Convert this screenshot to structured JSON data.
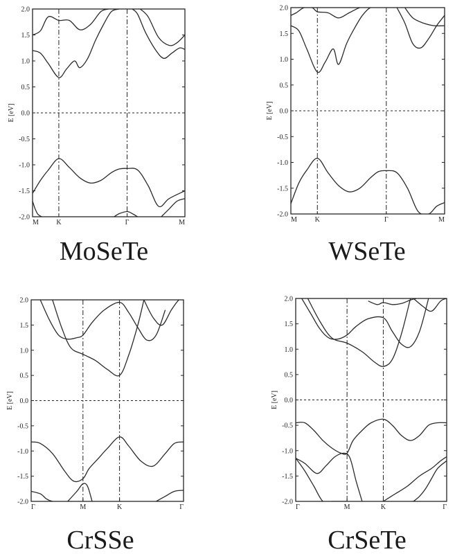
{
  "chart_data": [
    {
      "type": "line",
      "title": "MoSeTe",
      "ylabel": "E [eV]",
      "ylim": [
        -2.0,
        2.0
      ],
      "yticks": [
        "2.0",
        "1.5",
        "1.0",
        "0.5",
        "0.0",
        "-0.5",
        "-1.0",
        "-1.5",
        "-2.0"
      ],
      "kpoints": [
        {
          "label": "M",
          "x": 0
        },
        {
          "label": "K",
          "x": 1
        },
        {
          "label": "Γ",
          "x": 3.6
        },
        {
          "label": "M",
          "x": 5.8
        }
      ],
      "fermi_level": 0.0,
      "series": [
        {
          "x": [
            0,
            0.3,
            0.6,
            1.0,
            1.4,
            1.8,
            2.2,
            2.6,
            3.0,
            3.3,
            3.6,
            4.0,
            4.4,
            4.8,
            5.2,
            5.8
          ],
          "y": [
            -1.55,
            -1.3,
            -1.1,
            -0.88,
            -1.05,
            -1.25,
            -1.35,
            -1.3,
            -1.15,
            -1.08,
            -1.07,
            -1.1,
            -1.4,
            -1.8,
            -1.65,
            -1.5
          ]
        },
        {
          "x": [
            0,
            0.1,
            0.2,
            0.35
          ],
          "y": [
            -1.7,
            -1.85,
            -1.95,
            -2.0
          ]
        },
        {
          "x": [
            3.1,
            3.3,
            3.6,
            3.8,
            4.0
          ],
          "y": [
            -2.0,
            -1.94,
            -1.9,
            -1.94,
            -2.0
          ]
        },
        {
          "x": [
            4.9,
            5.2,
            5.5,
            5.8
          ],
          "y": [
            -2.0,
            -1.85,
            -1.7,
            -1.65
          ]
        },
        {
          "x": [
            0,
            0.3,
            0.6,
            1.0,
            1.3,
            1.6,
            1.8,
            2.1,
            2.4,
            2.7,
            3.0,
            3.3
          ],
          "y": [
            1.2,
            1.15,
            0.95,
            0.68,
            0.85,
            1.0,
            0.87,
            1.05,
            1.4,
            1.7,
            1.95,
            2.0
          ]
        },
        {
          "x": [
            0,
            0.3,
            0.6,
            1.0,
            1.4,
            1.8,
            2.2,
            2.6,
            2.9
          ],
          "y": [
            1.5,
            1.58,
            1.85,
            1.78,
            1.78,
            1.6,
            1.7,
            1.95,
            2.0
          ]
        },
        {
          "x": [
            3.8,
            4.0,
            4.3,
            4.7,
            5.0,
            5.3,
            5.6,
            5.8
          ],
          "y": [
            2.0,
            1.9,
            1.55,
            1.2,
            1.05,
            1.15,
            1.25,
            1.22
          ]
        },
        {
          "x": [
            4.1,
            4.4,
            4.8,
            5.2,
            5.5,
            5.8
          ],
          "y": [
            2.0,
            1.85,
            1.45,
            1.3,
            1.35,
            1.5
          ]
        }
      ]
    },
    {
      "type": "line",
      "title": "WSeTe",
      "ylabel": "E [eV]",
      "ylim": [
        -2.0,
        2.0
      ],
      "yticks": [
        "2.0",
        "1.5",
        "1.0",
        "0.5",
        "0.0",
        "-0.5",
        "-1.0",
        "-1.5",
        "-2.0"
      ],
      "kpoints": [
        {
          "label": "M",
          "x": 0
        },
        {
          "label": "K",
          "x": 1
        },
        {
          "label": "Γ",
          "x": 3.6
        },
        {
          "label": "M",
          "x": 5.8
        }
      ],
      "fermi_level": 0.0,
      "series": [
        {
          "x": [
            0,
            0.3,
            0.6,
            1.0,
            1.4,
            1.8,
            2.2,
            2.6,
            3.0,
            3.3,
            3.6,
            4.0,
            4.4,
            4.8,
            5.2,
            5.5,
            5.8
          ],
          "y": [
            -1.8,
            -1.4,
            -1.15,
            -0.92,
            -1.2,
            -1.45,
            -1.57,
            -1.5,
            -1.3,
            -1.18,
            -1.16,
            -1.2,
            -1.5,
            -1.95,
            -2.0,
            -1.85,
            -1.78
          ]
        },
        {
          "x": [
            0,
            0.3,
            0.6,
            1.0,
            1.3,
            1.6,
            1.8,
            2.1,
            2.4,
            2.7,
            3.0,
            3.3
          ],
          "y": [
            1.65,
            1.55,
            1.2,
            0.75,
            0.95,
            1.2,
            0.9,
            1.3,
            1.6,
            1.85,
            2.0,
            2.0
          ]
        },
        {
          "x": [
            0,
            0.2,
            0.5,
            0.8,
            1.0,
            1.4,
            1.8,
            2.2,
            2.6,
            2.8
          ],
          "y": [
            1.85,
            1.9,
            2.0,
            2.0,
            1.92,
            1.9,
            1.8,
            1.9,
            2.0,
            2.0
          ]
        },
        {
          "x": [
            4.0,
            4.3,
            4.6,
            4.9,
            5.2,
            5.5,
            5.8
          ],
          "y": [
            2.0,
            1.7,
            1.3,
            1.22,
            1.4,
            1.65,
            1.85
          ]
        },
        {
          "x": [
            4.3,
            4.6,
            5.0,
            5.4,
            5.8
          ],
          "y": [
            2.0,
            1.8,
            1.7,
            1.65,
            1.65
          ]
        }
      ]
    },
    {
      "type": "line",
      "title": "CrSSe",
      "ylabel": "E [eV]",
      "ylim": [
        -2.0,
        2.0
      ],
      "yticks": [
        "2.0",
        "1.5",
        "1.0",
        "0.5",
        "0.0",
        "-0.5",
        "-1.0",
        "-1.5",
        "-2.0"
      ],
      "kpoints": [
        {
          "label": "Γ",
          "x": 0
        },
        {
          "label": "M",
          "x": 1.7
        },
        {
          "label": "K",
          "x": 2.9
        },
        {
          "label": "Γ",
          "x": 5.0
        }
      ],
      "fermi_level": 0.0,
      "series": [
        {
          "x": [
            0,
            0.3,
            0.7,
            1.1,
            1.4,
            1.7,
            1.9,
            2.2,
            2.5,
            2.9,
            3.2,
            3.6,
            4.0,
            4.4,
            4.7,
            5.0
          ],
          "y": [
            -0.82,
            -0.85,
            -1.05,
            -1.4,
            -1.6,
            -1.55,
            -1.35,
            -1.15,
            -0.95,
            -0.72,
            -0.9,
            -1.2,
            -1.3,
            -1.05,
            -0.85,
            -0.82
          ]
        },
        {
          "x": [
            1.2,
            1.5,
            1.7,
            1.85,
            2.0
          ],
          "y": [
            -2.0,
            -1.8,
            -1.65,
            -1.7,
            -2.0
          ]
        },
        {
          "x": [
            0,
            0.3,
            0.5,
            0.7,
            0.85
          ],
          "y": [
            -1.8,
            -1.85,
            -1.95,
            -2.0,
            -2.0
          ]
        },
        {
          "x": [
            4.1,
            4.4,
            4.7,
            5.0
          ],
          "y": [
            -2.0,
            -1.9,
            -1.8,
            -1.78
          ]
        },
        {
          "x": [
            0.7,
            1.0,
            1.3,
            1.7,
            2.1,
            2.5,
            2.9,
            3.2,
            3.5,
            3.7
          ],
          "y": [
            2.0,
            1.45,
            1.05,
            0.92,
            0.8,
            0.62,
            0.5,
            0.9,
            1.5,
            2.0
          ]
        },
        {
          "x": [
            0.3,
            0.6,
            0.9,
            1.2,
            1.5,
            1.7,
            2.0,
            2.4,
            2.9,
            3.2,
            3.5,
            3.8,
            4.1,
            4.4
          ],
          "y": [
            2.0,
            1.6,
            1.3,
            1.22,
            1.25,
            1.3,
            1.55,
            1.8,
            1.95,
            1.75,
            1.45,
            1.2,
            1.3,
            1.8
          ]
        },
        {
          "x": [
            3.7,
            4.0,
            4.3,
            4.6,
            4.85,
            5.0
          ],
          "y": [
            2.0,
            1.65,
            1.5,
            1.8,
            2.0,
            2.0
          ]
        }
      ]
    },
    {
      "type": "line",
      "title": "CrSeTe",
      "ylabel": "E [eV]",
      "ylim": [
        -2.0,
        2.0
      ],
      "yticks": [
        "2.0",
        "1.5",
        "1.0",
        "0.5",
        "0.0",
        "-0.5",
        "-1.0",
        "-1.5",
        "-2.0"
      ],
      "kpoints": [
        {
          "label": "Γ",
          "x": 0
        },
        {
          "label": "M",
          "x": 1.7
        },
        {
          "label": "K",
          "x": 2.9
        },
        {
          "label": "Γ",
          "x": 5.0
        }
      ],
      "fermi_level": 0.0,
      "series": [
        {
          "x": [
            0,
            0.3,
            0.6,
            0.9,
            1.2,
            1.5,
            1.7,
            1.9,
            2.2,
            2.5,
            2.9,
            3.2,
            3.5,
            3.8,
            4.1,
            4.4,
            4.7,
            5.0
          ],
          "y": [
            -0.45,
            -0.45,
            -0.6,
            -0.8,
            -0.95,
            -1.05,
            -1.05,
            -0.8,
            -0.6,
            -0.45,
            -0.38,
            -0.5,
            -0.7,
            -0.8,
            -0.7,
            -0.5,
            -0.45,
            -0.45
          ]
        },
        {
          "x": [
            0,
            0.3,
            0.7,
            1.0,
            1.3,
            1.6,
            1.8,
            2.0,
            2.2
          ],
          "y": [
            -1.15,
            -1.25,
            -1.45,
            -1.3,
            -1.12,
            -1.05,
            -1.15,
            -1.6,
            -2.0
          ]
        },
        {
          "x": [
            0,
            0.3,
            0.6,
            0.9,
            1.2,
            1.5,
            1.7
          ],
          "y": [
            -1.15,
            -1.4,
            -1.7,
            -2.0,
            -2.0,
            -2.0,
            -2.0
          ]
        },
        {
          "x": [
            2.9,
            3.3,
            3.7,
            4.1,
            4.5,
            4.8,
            5.0
          ],
          "y": [
            -2.0,
            -1.85,
            -1.7,
            -1.5,
            -1.35,
            -1.2,
            -1.12
          ]
        },
        {
          "x": [
            3.9,
            4.1,
            4.3,
            4.5,
            4.7,
            5.0
          ],
          "y": [
            -2.0,
            -1.9,
            -1.75,
            -1.55,
            -1.35,
            -1.2
          ]
        },
        {
          "x": [
            0.4,
            0.8,
            1.2,
            1.7,
            2.2,
            2.6,
            2.9,
            3.2,
            3.5,
            3.8
          ],
          "y": [
            2.0,
            1.55,
            1.22,
            1.12,
            0.95,
            0.75,
            0.66,
            0.8,
            1.3,
            2.0
          ]
        },
        {
          "x": [
            0.2,
            0.5,
            0.8,
            1.1,
            1.4,
            1.7,
            2.0,
            2.4,
            2.9,
            3.2,
            3.5,
            3.8,
            4.1,
            4.4
          ],
          "y": [
            2.0,
            1.7,
            1.4,
            1.22,
            1.2,
            1.28,
            1.45,
            1.6,
            1.62,
            1.35,
            1.1,
            1.05,
            1.35,
            2.0
          ]
        },
        {
          "x": [
            2.4,
            2.7,
            2.9,
            3.2,
            3.5,
            3.8,
            4.0
          ],
          "y": [
            1.95,
            1.88,
            1.92,
            1.88,
            1.9,
            1.97,
            2.0
          ]
        },
        {
          "x": [
            3.9,
            4.2,
            4.5,
            4.8,
            5.0
          ],
          "y": [
            2.0,
            1.85,
            1.75,
            1.95,
            2.0
          ]
        }
      ]
    }
  ]
}
